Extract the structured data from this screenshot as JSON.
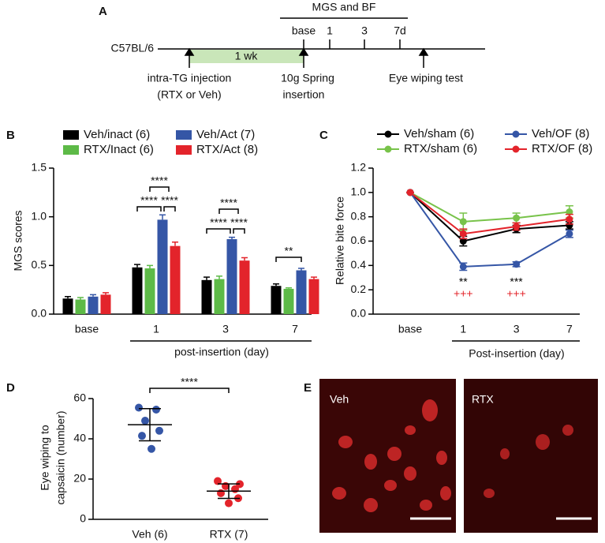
{
  "panel_a": {
    "label": "A",
    "header": "MGS and BF",
    "timepoints": [
      "base",
      "1",
      "3",
      "7d"
    ],
    "strain": "C57BL/6",
    "duration": "1 wk",
    "events": [
      [
        "intra-TG injection",
        "(RTX or Veh)"
      ],
      [
        "10g Spring",
        "insertion"
      ],
      [
        "Eye wiping test"
      ]
    ]
  },
  "chart_data": [
    {
      "type": "bar",
      "panel": "B",
      "ylabel": "MGS scores",
      "xlabel": "post-insertion (day)",
      "categories": [
        "base",
        "1",
        "3",
        "7"
      ],
      "series": [
        {
          "name": "Veh/inact (6)",
          "color": "#000000",
          "values": [
            0.16,
            0.48,
            0.35,
            0.29
          ],
          "errors": [
            0.02,
            0.03,
            0.03,
            0.02
          ]
        },
        {
          "name": "RTX/Inact (6)",
          "color": "#5dba47",
          "values": [
            0.15,
            0.47,
            0.36,
            0.26
          ],
          "errors": [
            0.02,
            0.03,
            0.03,
            0.01
          ]
        },
        {
          "name": "Veh/Act (7)",
          "color": "#3556a6",
          "values": [
            0.18,
            0.97,
            0.77,
            0.45
          ],
          "errors": [
            0.02,
            0.05,
            0.02,
            0.02
          ]
        },
        {
          "name": "RTX/Act (8)",
          "color": "#e3242b",
          "values": [
            0.2,
            0.7,
            0.55,
            0.36
          ],
          "errors": [
            0.02,
            0.04,
            0.03,
            0.02
          ]
        }
      ],
      "ylim": [
        0,
        1.5
      ],
      "yticks": [
        {
          "value": 0,
          "label": "0.0"
        },
        0.5,
        {
          "value": 1,
          "label": "1.0"
        },
        1.5
      ],
      "annotations": [
        "****",
        "****",
        "****",
        "****",
        "****",
        "****",
        "**"
      ]
    },
    {
      "type": "line",
      "panel": "C",
      "ylabel": "Relative bite force",
      "xlabel": "Post-insertion (day)",
      "categories": [
        "base",
        "1",
        "3",
        "7"
      ],
      "series": [
        {
          "name": "Veh/sham (6)",
          "color": "#000000",
          "values": [
            1.0,
            0.6,
            0.7,
            0.73
          ],
          "errors": [
            0,
            0.04,
            0.03,
            0.03
          ]
        },
        {
          "name": "RTX/sham (6)",
          "color": "#78c34a",
          "values": [
            1.0,
            0.76,
            0.79,
            0.84
          ],
          "errors": [
            0,
            0.07,
            0.04,
            0.05
          ]
        },
        {
          "name": "Veh/OF (8)",
          "color": "#3556a6",
          "values": [
            1.0,
            0.39,
            0.41,
            0.66
          ],
          "errors": [
            0,
            0.03,
            0.02,
            0.03
          ]
        },
        {
          "name": "RTX/OF (8)",
          "color": "#e3242b",
          "values": [
            1.0,
            0.66,
            0.72,
            0.78
          ],
          "errors": [
            0,
            0.04,
            0.03,
            0.04
          ]
        }
      ],
      "ylim": [
        0,
        1.2
      ],
      "yticks": [
        {
          "value": 0,
          "label": "0.0"
        },
        0.2,
        0.4,
        0.6,
        0.8,
        {
          "value": 1,
          "label": "1.0"
        },
        1.2
      ],
      "annotations": [
        {
          "text": "**",
          "color": "#000000"
        },
        {
          "text": "+++",
          "color": "#e3242b"
        },
        {
          "text": "***",
          "color": "#000000"
        },
        {
          "text": "+++",
          "color": "#e3242b"
        }
      ]
    },
    {
      "type": "dot",
      "panel": "D",
      "ylabel": [
        "Eye wiping to",
        "capsaicin (number)"
      ],
      "groups": [
        {
          "label": "Veh (6)",
          "color": "#3556a6",
          "values": [
            55.5,
            54.5,
            49,
            44,
            41.5,
            35
          ],
          "mean": 47,
          "sd": 8
        },
        {
          "label": "RTX (7)",
          "color": "#e3242b",
          "values": [
            19,
            17.5,
            16.5,
            15,
            13,
            10.5,
            8
          ],
          "mean": 14,
          "sd": 3.6
        }
      ],
      "ylim": [
        0,
        60
      ],
      "yticks": [
        0,
        20,
        40,
        60
      ],
      "annotations": [
        "****"
      ]
    }
  ],
  "panel_e": {
    "label": "E",
    "images": [
      "Veh",
      "RTX"
    ]
  }
}
